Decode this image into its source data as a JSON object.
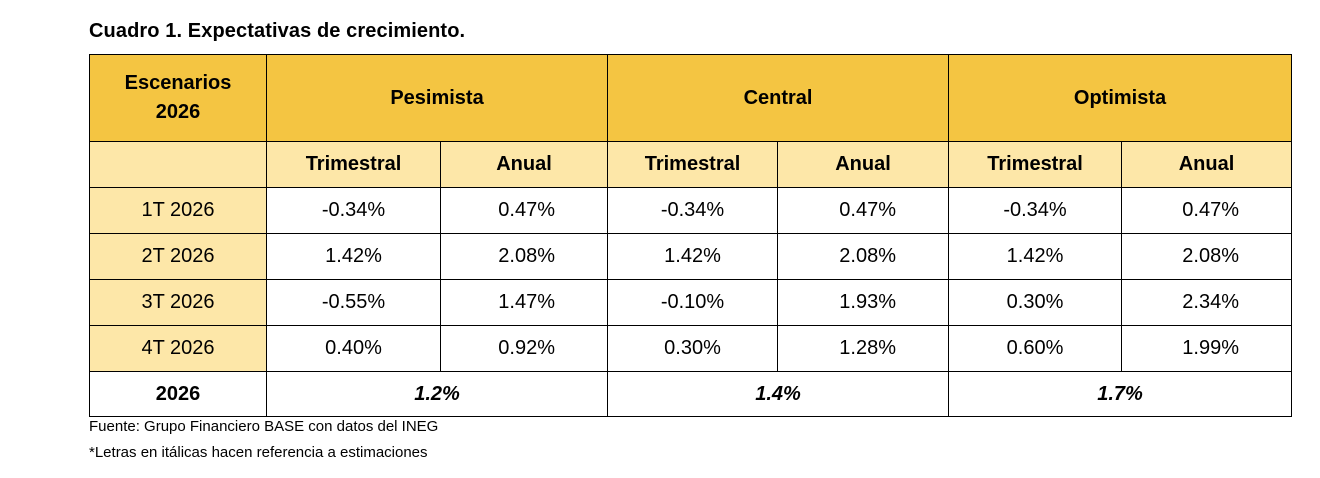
{
  "title": "Cuadro 1. Expectativas de crecimiento.",
  "table": {
    "corner_line1": "Escenarios",
    "corner_line2": "2026",
    "scenarios": [
      "Pesimista",
      "Central",
      "Optimista"
    ],
    "sub_headers": [
      "Trimestral",
      "Anual",
      "Trimestral",
      "Anual",
      "Trimestral",
      "Anual"
    ],
    "rows": [
      {
        "label": "1T 2026",
        "values": [
          "-0.34%",
          "0.47%",
          "-0.34%",
          "0.47%",
          "-0.34%",
          "0.47%"
        ]
      },
      {
        "label": "2T 2026",
        "values": [
          "1.42%",
          "2.08%",
          "1.42%",
          "2.08%",
          "1.42%",
          "2.08%"
        ]
      },
      {
        "label": "3T 2026",
        "values": [
          "-0.55%",
          "1.47%",
          "-0.10%",
          "1.93%",
          "0.30%",
          "2.34%"
        ]
      },
      {
        "label": "4T 2026",
        "values": [
          "0.40%",
          "0.92%",
          "0.30%",
          "1.28%",
          "0.60%",
          "1.99%"
        ]
      }
    ],
    "total": {
      "label": "2026",
      "values": [
        "1.2%",
        "1.4%",
        "1.7%"
      ]
    }
  },
  "notes": {
    "source": "Fuente: Grupo Financiero BASE con datos del INEG",
    "italics": "*Letras en itálicas hacen referencia a estimaciones"
  },
  "colors": {
    "header_dark": "#F4C542",
    "header_light": "#FDE7A8"
  }
}
